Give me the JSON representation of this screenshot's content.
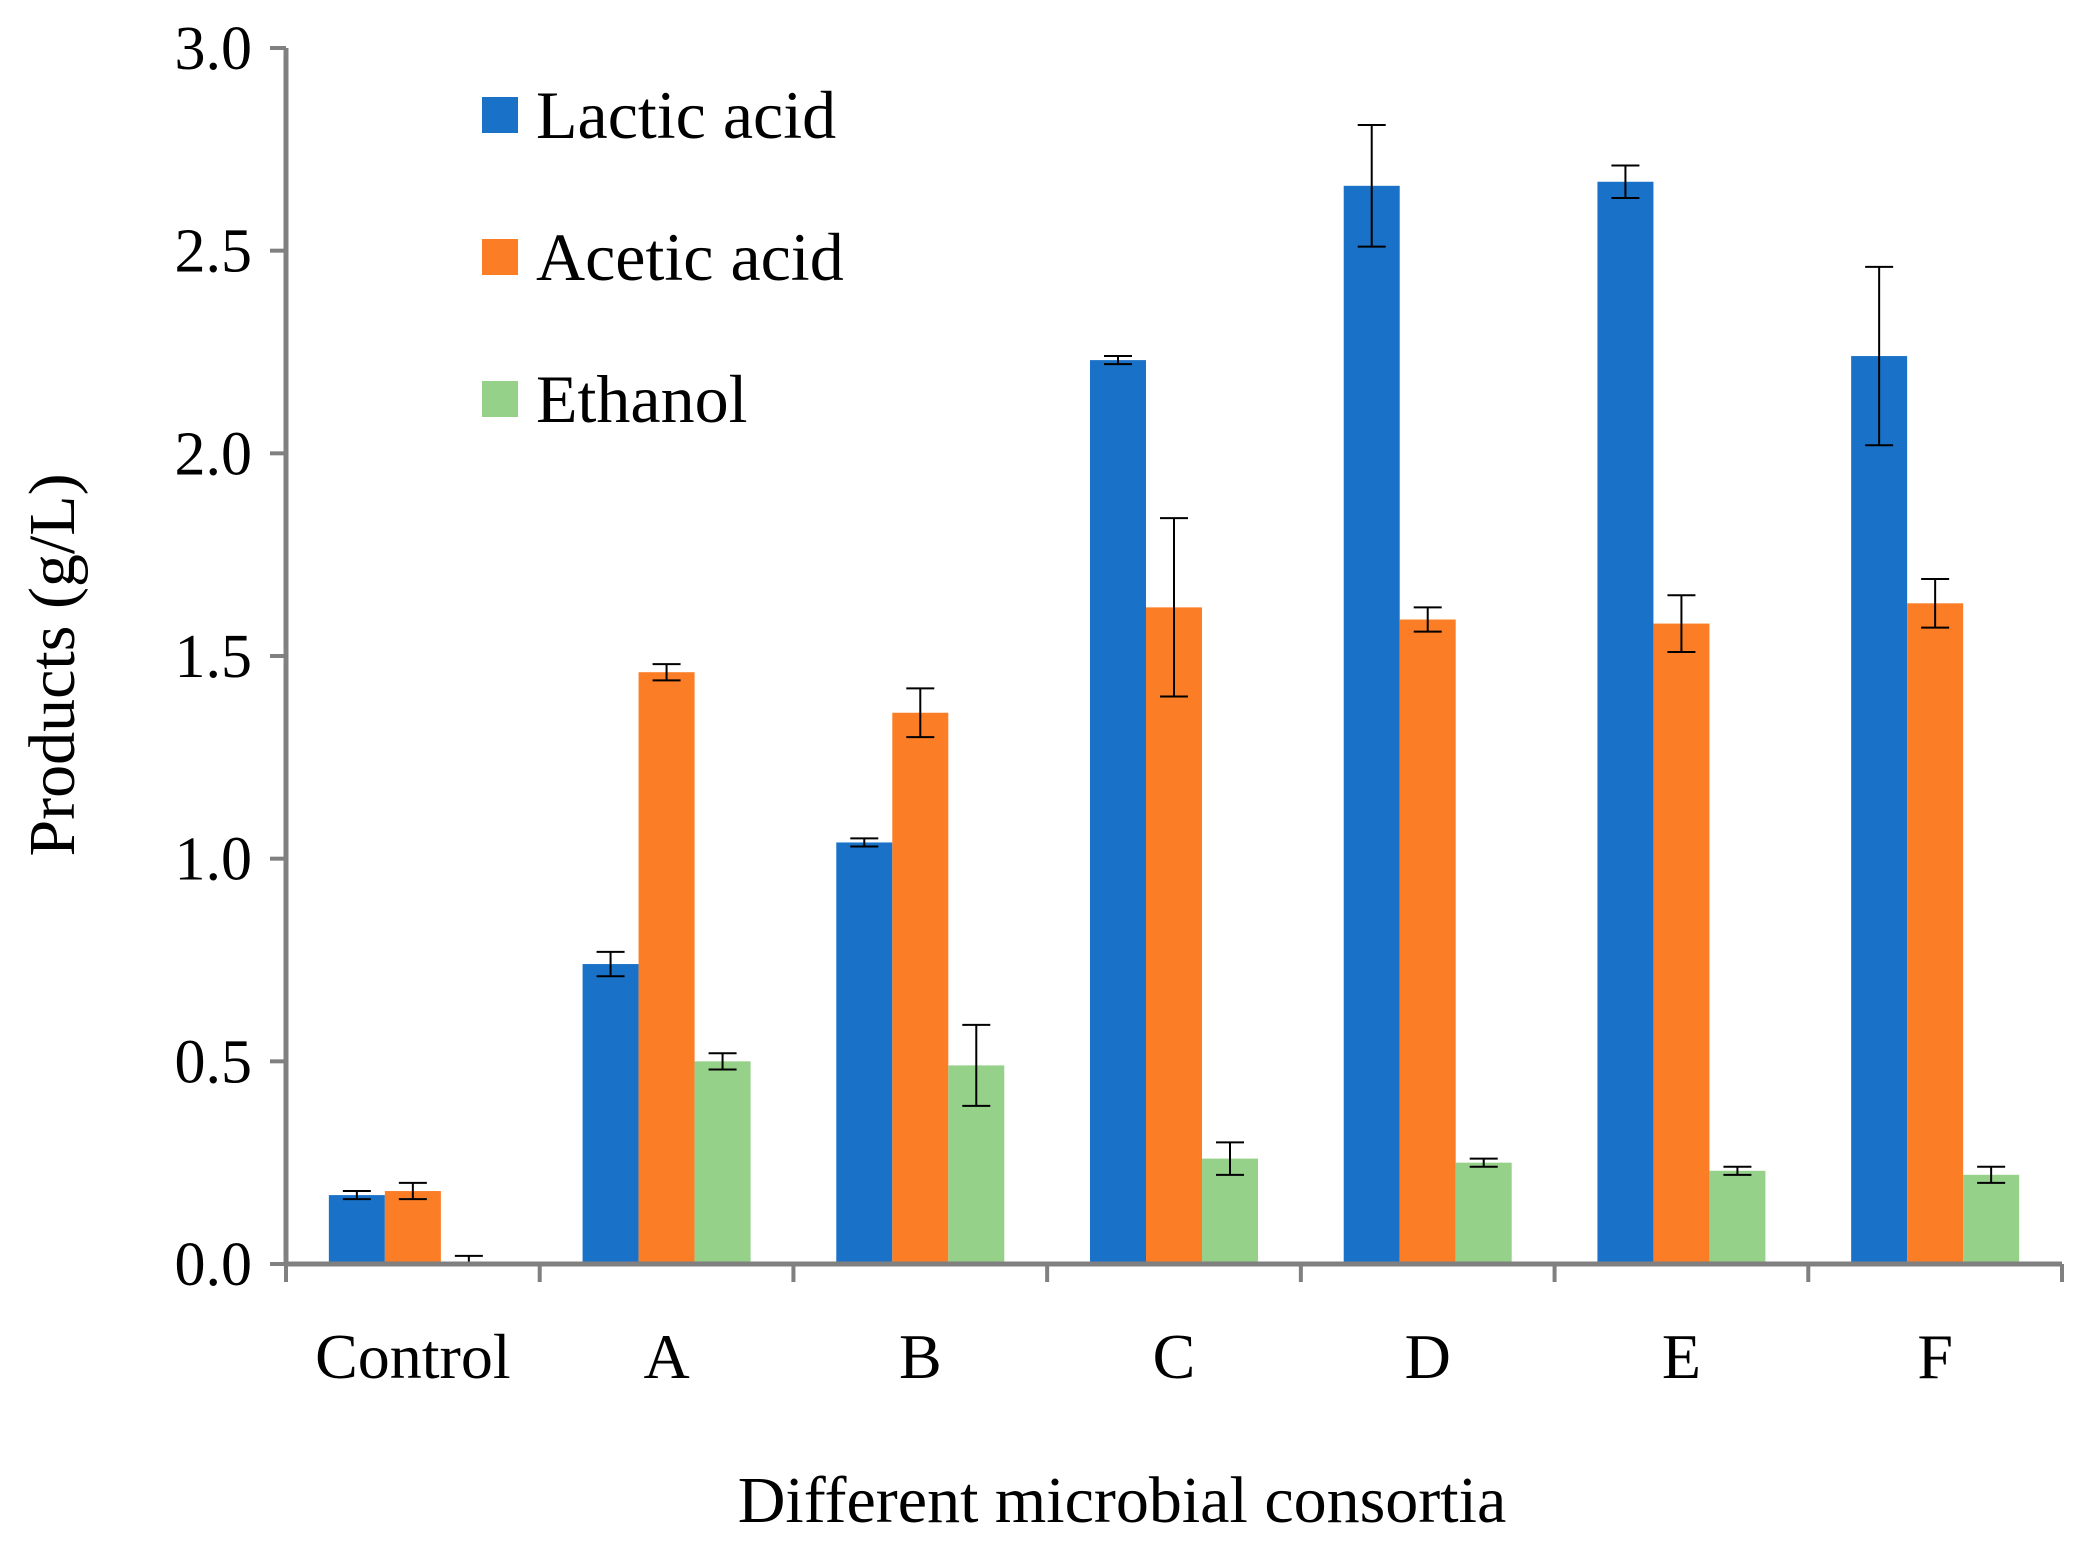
{
  "chart_data": {
    "type": "bar",
    "title": "",
    "xlabel": "Different microbial consortia",
    "ylabel": "Products (g/L)",
    "ylim": [
      0,
      3.0
    ],
    "yticks": [
      "0.0",
      "0.5",
      "1.0",
      "1.5",
      "2.0",
      "2.5",
      "3.0"
    ],
    "yticks_values": [
      0,
      0.5,
      1.0,
      1.5,
      2.0,
      2.5,
      3.0
    ],
    "categories": [
      "Control",
      "A",
      "B",
      "C",
      "D",
      "E",
      "F"
    ],
    "series": [
      {
        "name": "Lactic acid",
        "color": "#1a72c8",
        "values": [
          0.17,
          0.74,
          1.04,
          2.23,
          2.66,
          2.67,
          2.24
        ],
        "errors": [
          0.01,
          0.03,
          0.01,
          0.01,
          0.15,
          0.04,
          0.22
        ]
      },
      {
        "name": "Acetic acid",
        "color": "#fb7d26",
        "values": [
          0.18,
          1.46,
          1.36,
          1.62,
          1.59,
          1.58,
          1.63
        ],
        "errors": [
          0.02,
          0.02,
          0.06,
          0.22,
          0.03,
          0.07,
          0.06
        ]
      },
      {
        "name": "Ethanol",
        "color": "#96d18a",
        "values": [
          0.0,
          0.5,
          0.49,
          0.26,
          0.25,
          0.23,
          0.22
        ],
        "errors": [
          0.02,
          0.02,
          0.1,
          0.04,
          0.01,
          0.01,
          0.02
        ]
      }
    ],
    "grid": false,
    "legend_position": "top-left"
  }
}
